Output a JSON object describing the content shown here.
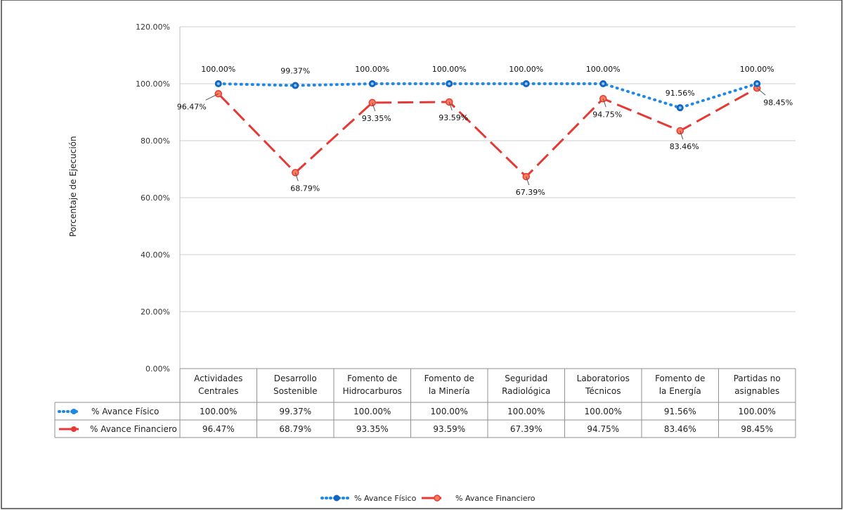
{
  "chart_data": {
    "type": "line",
    "title": "",
    "ylabel": "Porcentaje de Ejecución",
    "xlabel": "",
    "ylim": [
      0,
      120
    ],
    "yticks": [
      "0.00%",
      "20.00%",
      "40.00%",
      "60.00%",
      "80.00%",
      "100.00%",
      "120.00%"
    ],
    "ytick_values": [
      0,
      20,
      40,
      60,
      80,
      100,
      120
    ],
    "categories": [
      [
        "Actividades",
        "Centrales"
      ],
      [
        "Desarrollo",
        "Sostenible"
      ],
      [
        "Fomento de",
        "Hidrocarburos"
      ],
      [
        "Fomento de",
        "la Minería"
      ],
      [
        "Seguridad",
        "Radiológica"
      ],
      [
        "Laboratorios",
        "Técnicos"
      ],
      [
        "Fomento de",
        "la Energía"
      ],
      [
        "Partidas no",
        "asignables"
      ]
    ],
    "series": [
      {
        "name": "% Avance  Físico",
        "color": "#1e88e5",
        "style": "dotted",
        "values": [
          100,
          99.37,
          100,
          100,
          100,
          100,
          91.56,
          100
        ],
        "labels": [
          "100.00%",
          "99.37%",
          "100.00%",
          "100.00%",
          "100.00%",
          "100.00%",
          "91.56%",
          "100.00%"
        ]
      },
      {
        "name": "% Avance Financiero",
        "color": "#e53935",
        "style": "dashed",
        "values": [
          96.47,
          68.79,
          93.35,
          93.59,
          67.39,
          94.75,
          83.46,
          98.45
        ],
        "labels": [
          "96.47%",
          "68.79%",
          "93.35%",
          "93.59%",
          "67.39%",
          "94.75%",
          "83.46%",
          "98.45%"
        ]
      }
    ],
    "legend": {
      "placement": "bottom",
      "items": [
        "% Avance  Físico",
        "% Avance Financiero"
      ]
    },
    "grid": true
  }
}
